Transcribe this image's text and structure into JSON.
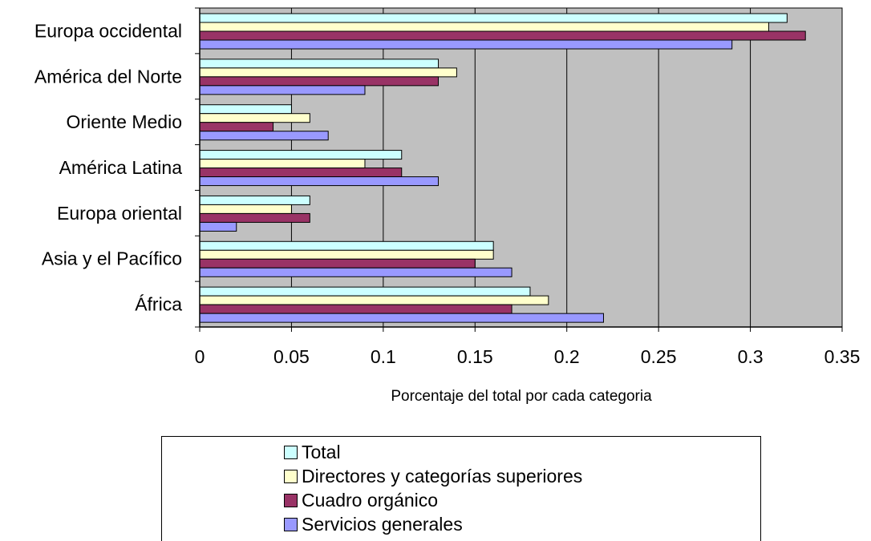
{
  "chart_data": {
    "type": "bar",
    "orientation": "horizontal",
    "categories": [
      "Europa occidental",
      "América del Norte",
      "Oriente Medio",
      "América Latina",
      "Europa oriental",
      "Asia y el Pacífico",
      "África"
    ],
    "series": [
      {
        "name": "Total",
        "color": "#ccffff",
        "values": [
          0.32,
          0.13,
          0.05,
          0.11,
          0.06,
          0.16,
          0.18
        ]
      },
      {
        "name": "Directores y categorías superiores",
        "color": "#ffffcc",
        "values": [
          0.31,
          0.14,
          0.06,
          0.09,
          0.05,
          0.16,
          0.19
        ]
      },
      {
        "name": "Cuadro orgánico",
        "color": "#993366",
        "values": [
          0.33,
          0.13,
          0.04,
          0.11,
          0.06,
          0.15,
          0.17
        ]
      },
      {
        "name": "Servicios generales",
        "color": "#9999ff",
        "values": [
          0.29,
          0.09,
          0.07,
          0.13,
          0.02,
          0.17,
          0.22
        ]
      }
    ],
    "xlabel": "Porcentaje del total por cada categoria",
    "ylabel": "",
    "xlim": [
      0,
      0.35
    ],
    "xticks": [
      "0",
      "0.05",
      "0.1",
      "0.15",
      "0.2",
      "0.25",
      "0.3",
      "0.35"
    ],
    "grid": true,
    "plot_background": "#c0c0c0",
    "legend_position": "bottom"
  }
}
